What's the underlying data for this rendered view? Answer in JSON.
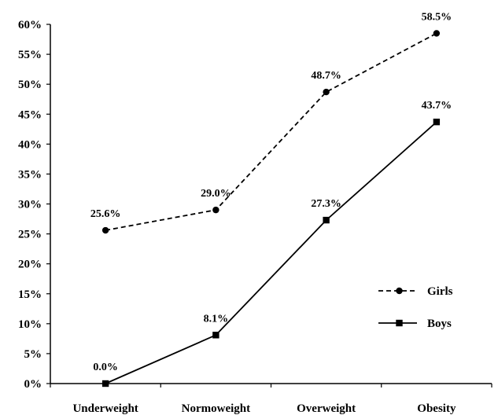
{
  "chart_data": {
    "type": "line",
    "title": "",
    "xlabel": "",
    "ylabel": "",
    "categories": [
      "Underweight",
      "Normoweight",
      "Overweight",
      "Obesity"
    ],
    "ylim": [
      0,
      60
    ],
    "y_ticks": [
      "0%",
      "5%",
      "10%",
      "15%",
      "20%",
      "25%",
      "30%",
      "35%",
      "40%",
      "45%",
      "50%",
      "55%",
      "60%"
    ],
    "grid": false,
    "legend_position": "right",
    "series": [
      {
        "name": "Girls",
        "values": [
          25.6,
          29.0,
          48.7,
          58.5
        ],
        "labels": [
          "25.6%",
          "29.0%",
          "48.7%",
          "58.5%"
        ],
        "line_style": "dashed",
        "marker": "circle",
        "color": "#000000"
      },
      {
        "name": "Boys",
        "values": [
          0.0,
          8.1,
          27.3,
          43.7
        ],
        "labels": [
          "0.0%",
          "8.1%",
          "27.3%",
          "43.7%"
        ],
        "line_style": "solid",
        "marker": "square",
        "color": "#000000"
      }
    ]
  }
}
